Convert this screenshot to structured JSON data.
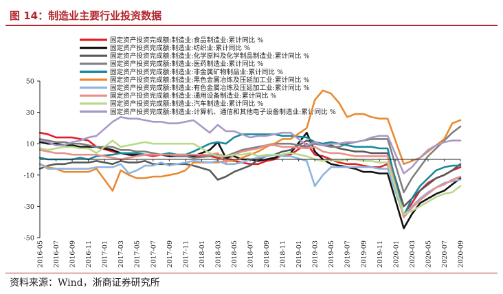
{
  "figure": {
    "title": "图 14：制造业主要行业投资数据",
    "source": "资料来源：Wind，浙商证券研究所"
  },
  "chart_data": {
    "type": "line",
    "ylim": [
      -50,
      50
    ],
    "yticks": [
      -50,
      -30,
      -10,
      10,
      30,
      50
    ],
    "x": [
      "2016-05",
      "2016-06",
      "2016-07",
      "2016-08",
      "2016-09",
      "2016-10",
      "2016-11",
      "2016-12",
      "2017-01",
      "2017-02",
      "2017-03",
      "2017-04",
      "2017-05",
      "2017-06",
      "2017-07",
      "2017-08",
      "2017-09",
      "2017-10",
      "2017-11",
      "2017-12",
      "2018-01",
      "2018-02",
      "2018-03",
      "2018-04",
      "2018-05",
      "2018-06",
      "2018-07",
      "2018-08",
      "2018-09",
      "2018-10",
      "2018-11",
      "2018-12",
      "2019-01",
      "2019-02",
      "2019-03",
      "2019-04",
      "2019-05",
      "2019-06",
      "2019-07",
      "2019-08",
      "2019-09",
      "2019-10",
      "2019-11",
      "2019-12",
      "2020-01",
      "2020-02",
      "2020-03",
      "2020-04",
      "2020-05",
      "2020-06",
      "2020-07",
      "2020-08",
      "2020-09"
    ],
    "xtick_labels": [
      "2016-05",
      "2016-07",
      "2016-09",
      "2016-11",
      "2017-01",
      "2017-03",
      "2017-05",
      "2017-07",
      "2017-09",
      "2017-11",
      "2018-01",
      "2018-03",
      "2018-05",
      "2018-07",
      "2018-09",
      "2018-11",
      "2019-01",
      "2019-03",
      "2019-05",
      "2019-07",
      "2019-09",
      "2019-11",
      "2020-01",
      "2020-03",
      "2020-05",
      "2020-07",
      "2020-09"
    ],
    "legend_position": "top",
    "grid": false,
    "series": [
      {
        "name": "固定资产投资完成额:制造业:食品制造业:累计同比 %",
        "color": "#e41e26",
        "values": [
          17,
          16,
          14,
          14,
          14,
          13,
          12,
          8,
          null,
          5,
          4,
          3,
          2,
          3,
          2,
          3,
          3,
          3,
          3,
          2,
          null,
          2,
          1,
          1,
          -1,
          -2,
          -3,
          -3,
          -1,
          0,
          3,
          3,
          null,
          10,
          3,
          2,
          0,
          -2,
          -3,
          -3,
          -4,
          -5,
          -5,
          -3,
          null,
          -36,
          -28,
          -20,
          -15,
          -12,
          -10,
          -7,
          -5
        ]
      },
      {
        "name": "固定资产投资完成额:制造业:纺织业:累计同比 %",
        "color": "#111111",
        "values": [
          11,
          10,
          10,
          9,
          9,
          8,
          8,
          8,
          null,
          6,
          4,
          3,
          3,
          3,
          3,
          3,
          2,
          2,
          2,
          2,
          null,
          6,
          11,
          1,
          2,
          0,
          0,
          -1,
          0,
          1,
          3,
          4,
          null,
          17,
          5,
          0,
          -3,
          -4,
          -5,
          -6,
          -8,
          -8,
          -9,
          -9,
          null,
          -44,
          -35,
          -28,
          -25,
          -22,
          -20,
          -16,
          -12
        ]
      },
      {
        "name": "固定资产投资完成额:制造业:化学原料及化学制品制造业:累计同比 %",
        "color": "#595959",
        "values": [
          -6,
          -4,
          -3,
          -3,
          -2,
          -2,
          -2,
          -1,
          null,
          -3,
          -1,
          -2,
          -2,
          -1,
          -3,
          -3,
          -3,
          -3,
          -3,
          -4,
          null,
          -7,
          -13,
          -11,
          -8,
          -6,
          -4,
          0,
          2,
          3,
          5,
          6,
          null,
          12,
          10,
          9,
          9,
          7,
          6,
          5,
          5,
          4,
          4,
          4,
          null,
          -30,
          -25,
          -20,
          -16,
          -12,
          -10,
          -7,
          -3
        ]
      },
      {
        "name": "固定资产投资完成额:制造业:医药制造业:累计同比 %",
        "color": "#7f7f7f",
        "values": [
          13,
          12,
          11,
          11,
          10,
          10,
          9,
          8,
          null,
          8,
          6,
          6,
          5,
          5,
          4,
          3,
          3,
          2,
          2,
          1,
          null,
          2,
          3,
          2,
          4,
          6,
          7,
          8,
          9,
          10,
          10,
          10,
          null,
          8,
          10,
          9,
          8,
          8,
          10,
          11,
          12,
          13,
          13,
          13,
          null,
          -21,
          -12,
          -5,
          2,
          7,
          12,
          17,
          21
        ]
      },
      {
        "name": "固定资产投资完成额:制造业:非金属矿物制品业:累计同比 %",
        "color": "#17899b",
        "values": [
          1,
          0,
          0,
          0,
          0,
          1,
          0,
          2,
          null,
          3,
          4,
          4,
          4,
          3,
          3,
          3,
          4,
          3,
          3,
          5,
          null,
          10,
          11,
          10,
          14,
          16,
          16,
          16,
          16,
          16,
          15,
          15,
          null,
          14,
          11,
          10,
          11,
          10,
          9,
          8,
          8,
          8,
          7,
          7,
          null,
          -36,
          -25,
          -17,
          -12,
          -7,
          -5,
          -4,
          -4
        ]
      },
      {
        "name": "固定资产投资完成额:制造业:黑色金属冶炼及压延加工业:累计同比 %",
        "color": "#e98a32",
        "values": [
          -3,
          -5,
          -6,
          -8,
          -8,
          -8,
          -8,
          -6,
          null,
          -20,
          -7,
          -10,
          -12,
          -12,
          -11,
          -11,
          -10,
          -9,
          -7,
          -2,
          null,
          -2,
          -2,
          -1,
          -1,
          1,
          3,
          5,
          8,
          10,
          13,
          13,
          null,
          20,
          38,
          44,
          42,
          36,
          27,
          29,
          29,
          27,
          26,
          26,
          null,
          -3,
          -1,
          1,
          5,
          9,
          13,
          23,
          25
        ]
      },
      {
        "name": "固定资产投资完成额:制造业:有色金属冶炼及压延加工业:累计同比 %",
        "color": "#8fb4dd",
        "values": [
          -3,
          -6,
          -6,
          -6,
          -6,
          -6,
          -6,
          -5,
          null,
          -5,
          -3,
          -9,
          -7,
          -4,
          -4,
          -2,
          -4,
          -3,
          -2,
          -1,
          null,
          -2,
          -1,
          -3,
          -3,
          -2,
          0,
          1,
          2,
          3,
          2,
          2,
          null,
          -1,
          -17,
          -10,
          -5,
          -5,
          -5,
          -5,
          -5,
          -5,
          -6,
          -6,
          null,
          -36,
          -30,
          -25,
          -21,
          -18,
          -15,
          -14,
          -13
        ]
      },
      {
        "name": "固定资产投资完成额:制造业:通用设备制造业:累计同比 %",
        "color": "#e8908d",
        "values": [
          6,
          5,
          4,
          4,
          3,
          3,
          3,
          3,
          null,
          1,
          0,
          1,
          2,
          3,
          3,
          3,
          3,
          3,
          3,
          3,
          null,
          3,
          4,
          -2,
          3,
          5,
          6,
          7,
          9,
          9,
          8,
          8,
          null,
          7,
          8,
          5,
          4,
          4,
          3,
          2,
          2,
          2,
          2,
          2,
          null,
          -37,
          -31,
          -26,
          -22,
          -18,
          -16,
          -13,
          -11
        ]
      },
      {
        "name": "固定资产投资完成额:制造业:汽车制造业:累计同比 %",
        "color": "#b9d98b",
        "values": [
          7,
          6,
          7,
          8,
          8,
          7,
          7,
          4,
          null,
          12,
          8,
          9,
          10,
          11,
          10,
          10,
          10,
          10,
          10,
          10,
          null,
          4,
          2,
          2,
          3,
          3,
          4,
          2,
          3,
          3,
          3,
          4,
          null,
          2,
          0,
          -1,
          0,
          -1,
          0,
          0,
          -1,
          -1,
          -2,
          -2,
          null,
          -35,
          -33,
          -30,
          -27,
          -24,
          -22,
          -21,
          -17
        ]
      },
      {
        "name": "固定资产投资完成额:制造业:计算机、通信和其他电子设备制造业:累计同比 %",
        "color": "#a898c6",
        "values": [
          12,
          11,
          9,
          9,
          11,
          12,
          14,
          15,
          null,
          24,
          27,
          26,
          26,
          25,
          24,
          24,
          23,
          23,
          24,
          25,
          null,
          17,
          22,
          18,
          18,
          16,
          14,
          15,
          15,
          16,
          17,
          17,
          null,
          9,
          11,
          9,
          10,
          10,
          11,
          11,
          12,
          14,
          15,
          15,
          null,
          -9,
          -5,
          1,
          6,
          9,
          11,
          12,
          12
        ]
      }
    ]
  }
}
